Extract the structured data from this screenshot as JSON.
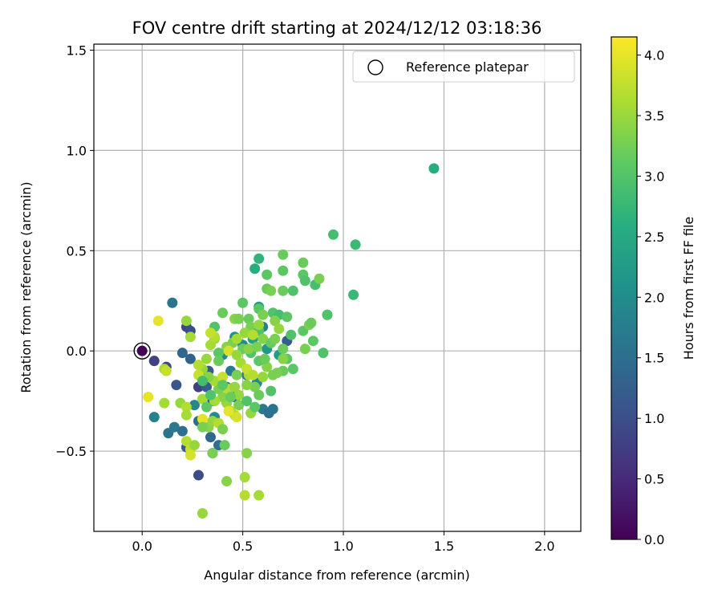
{
  "chart_data": {
    "type": "scatter",
    "title": "FOV centre drift starting at 2024/12/12 03:18:36",
    "xlabel": "Angular distance from reference (arcmin)",
    "ylabel": "Rotation from reference (arcmin)",
    "xlim": [
      -0.24,
      2.18
    ],
    "ylim": [
      -0.9,
      1.53
    ],
    "xticks": [
      0.0,
      0.5,
      1.0,
      1.5,
      2.0
    ],
    "xtick_labels": [
      "0.0",
      "0.5",
      "1.0",
      "1.5",
      "2.0"
    ],
    "yticks": [
      -0.5,
      0.0,
      0.5,
      1.0,
      1.5
    ],
    "ytick_labels": [
      "−0.5",
      "0.0",
      "0.5",
      "1.0",
      "1.5"
    ],
    "grid": true,
    "legend": {
      "placement": "top-right",
      "entries": [
        {
          "label": "Reference platepar",
          "marker": "open-circle"
        }
      ]
    },
    "reference_point": {
      "x": 0.0,
      "y": 0.0
    },
    "colorbar": {
      "label": "Hours from first FF file",
      "colormap": "viridis",
      "range": [
        0.0,
        4.15
      ],
      "ticks": [
        0.0,
        0.5,
        1.0,
        1.5,
        2.0,
        2.5,
        3.0,
        3.5,
        4.0
      ],
      "tick_labels": [
        "0.0",
        "0.5",
        "1.0",
        "1.5",
        "2.0",
        "2.5",
        "3.0",
        "3.5",
        "4.0"
      ]
    },
    "points": [
      {
        "x": 0.0,
        "y": 0.0,
        "c": 0.0
      },
      {
        "x": 0.06,
        "y": -0.05,
        "c": 0.8
      },
      {
        "x": 0.12,
        "y": -0.08,
        "c": 0.9
      },
      {
        "x": 0.22,
        "y": 0.12,
        "c": 0.9
      },
      {
        "x": 0.24,
        "y": 0.1,
        "c": 1.0
      },
      {
        "x": 0.2,
        "y": -0.01,
        "c": 1.4
      },
      {
        "x": 0.24,
        "y": -0.04,
        "c": 1.3
      },
      {
        "x": 0.17,
        "y": -0.17,
        "c": 1.1
      },
      {
        "x": 0.15,
        "y": 0.24,
        "c": 1.6
      },
      {
        "x": 0.06,
        "y": -0.33,
        "c": 1.8
      },
      {
        "x": 0.13,
        "y": -0.41,
        "c": 1.6
      },
      {
        "x": 0.16,
        "y": -0.38,
        "c": 1.7
      },
      {
        "x": 0.2,
        "y": -0.4,
        "c": 1.5
      },
      {
        "x": 0.22,
        "y": -0.48,
        "c": 1.2
      },
      {
        "x": 0.28,
        "y": -0.62,
        "c": 1.0
      },
      {
        "x": 0.28,
        "y": -0.35,
        "c": 1.5
      },
      {
        "x": 0.34,
        "y": -0.43,
        "c": 1.4
      },
      {
        "x": 0.35,
        "y": -0.51,
        "c": 1.6
      },
      {
        "x": 0.38,
        "y": -0.47,
        "c": 1.5
      },
      {
        "x": 0.28,
        "y": -0.18,
        "c": 0.8
      },
      {
        "x": 0.32,
        "y": -0.18,
        "c": 1.2
      },
      {
        "x": 0.35,
        "y": -0.25,
        "c": 1.3
      },
      {
        "x": 0.3,
        "y": -0.12,
        "c": 1.4
      },
      {
        "x": 0.33,
        "y": -0.1,
        "c": 1.2
      },
      {
        "x": 0.42,
        "y": -0.18,
        "c": 1.8
      },
      {
        "x": 0.46,
        "y": -0.23,
        "c": 1.3
      },
      {
        "x": 0.44,
        "y": -0.1,
        "c": 1.7
      },
      {
        "x": 0.52,
        "y": -0.12,
        "c": 1.6
      },
      {
        "x": 0.57,
        "y": -0.16,
        "c": 1.9
      },
      {
        "x": 0.6,
        "y": -0.29,
        "c": 1.7
      },
      {
        "x": 0.63,
        "y": -0.31,
        "c": 1.5
      },
      {
        "x": 0.65,
        "y": -0.29,
        "c": 1.6
      },
      {
        "x": 0.72,
        "y": 0.05,
        "c": 1.2
      },
      {
        "x": 0.6,
        "y": 0.12,
        "c": 1.8
      },
      {
        "x": 0.5,
        "y": 0.03,
        "c": 2.0
      },
      {
        "x": 0.46,
        "y": 0.07,
        "c": 2.1
      },
      {
        "x": 0.4,
        "y": -0.02,
        "c": 1.9
      },
      {
        "x": 0.36,
        "y": -0.33,
        "c": 2.0
      },
      {
        "x": 0.26,
        "y": -0.27,
        "c": 1.9
      },
      {
        "x": 0.58,
        "y": 0.22,
        "c": 2.3
      },
      {
        "x": 0.56,
        "y": 0.41,
        "c": 2.6
      },
      {
        "x": 0.58,
        "y": 0.46,
        "c": 2.7
      },
      {
        "x": 0.55,
        "y": 0.06,
        "c": 2.4
      },
      {
        "x": 0.62,
        "y": 0.01,
        "c": 2.2
      },
      {
        "x": 0.68,
        "y": -0.02,
        "c": 2.3
      },
      {
        "x": 1.45,
        "y": 0.91,
        "c": 2.6
      },
      {
        "x": 1.05,
        "y": 0.28,
        "c": 2.8
      },
      {
        "x": 0.95,
        "y": 0.58,
        "c": 2.9
      },
      {
        "x": 1.06,
        "y": 0.53,
        "c": 2.8
      },
      {
        "x": 0.92,
        "y": 0.18,
        "c": 2.9
      },
      {
        "x": 0.92,
        "y": 0.18,
        "c": 3.0
      },
      {
        "x": 0.9,
        "y": -0.01,
        "c": 3.0
      },
      {
        "x": 0.85,
        "y": 0.05,
        "c": 3.1
      },
      {
        "x": 0.8,
        "y": 0.1,
        "c": 3.1
      },
      {
        "x": 0.8,
        "y": 0.44,
        "c": 3.2
      },
      {
        "x": 0.8,
        "y": 0.38,
        "c": 3.1
      },
      {
        "x": 0.81,
        "y": 0.35,
        "c": 3.0
      },
      {
        "x": 0.86,
        "y": 0.33,
        "c": 2.9
      },
      {
        "x": 0.88,
        "y": 0.36,
        "c": 3.3
      },
      {
        "x": 0.7,
        "y": 0.48,
        "c": 3.2
      },
      {
        "x": 0.7,
        "y": 0.4,
        "c": 3.1
      },
      {
        "x": 0.7,
        "y": 0.3,
        "c": 3.2
      },
      {
        "x": 0.75,
        "y": 0.3,
        "c": 3.0
      },
      {
        "x": 0.62,
        "y": 0.38,
        "c": 3.1
      },
      {
        "x": 0.62,
        "y": 0.31,
        "c": 3.2
      },
      {
        "x": 0.64,
        "y": 0.3,
        "c": 3.3
      },
      {
        "x": 0.65,
        "y": 0.19,
        "c": 3.0
      },
      {
        "x": 0.68,
        "y": 0.18,
        "c": 2.9
      },
      {
        "x": 0.72,
        "y": 0.17,
        "c": 3.1
      },
      {
        "x": 0.83,
        "y": 0.13,
        "c": 3.3
      },
      {
        "x": 0.84,
        "y": 0.14,
        "c": 3.2
      },
      {
        "x": 0.74,
        "y": 0.08,
        "c": 3.0
      },
      {
        "x": 0.81,
        "y": 0.01,
        "c": 3.3
      },
      {
        "x": 0.75,
        "y": -0.09,
        "c": 3.1
      },
      {
        "x": 0.7,
        "y": -0.1,
        "c": 3.2
      },
      {
        "x": 0.67,
        "y": -0.11,
        "c": 3.3
      },
      {
        "x": 0.62,
        "y": -0.08,
        "c": 3.4
      },
      {
        "x": 0.58,
        "y": -0.05,
        "c": 3.1
      },
      {
        "x": 0.54,
        "y": -0.01,
        "c": 3.0
      },
      {
        "x": 0.5,
        "y": 0.01,
        "c": 3.2
      },
      {
        "x": 0.45,
        "y": 0.04,
        "c": 3.3
      },
      {
        "x": 0.42,
        "y": 0.02,
        "c": 3.4
      },
      {
        "x": 0.38,
        "y": -0.01,
        "c": 3.1
      },
      {
        "x": 0.36,
        "y": 0.06,
        "c": 3.5
      },
      {
        "x": 0.36,
        "y": 0.12,
        "c": 3.0
      },
      {
        "x": 0.4,
        "y": 0.19,
        "c": 3.2
      },
      {
        "x": 0.46,
        "y": 0.16,
        "c": 3.4
      },
      {
        "x": 0.5,
        "y": 0.24,
        "c": 3.1
      },
      {
        "x": 0.53,
        "y": 0.16,
        "c": 3.2
      },
      {
        "x": 0.54,
        "y": 0.12,
        "c": 3.3
      },
      {
        "x": 0.58,
        "y": 0.1,
        "c": 3.0
      },
      {
        "x": 0.6,
        "y": 0.06,
        "c": 3.4
      },
      {
        "x": 0.64,
        "y": 0.04,
        "c": 3.2
      },
      {
        "x": 0.66,
        "y": 0.06,
        "c": 3.3
      },
      {
        "x": 0.7,
        "y": 0.01,
        "c": 3.2
      },
      {
        "x": 0.72,
        "y": -0.04,
        "c": 3.1
      },
      {
        "x": 0.56,
        "y": -0.18,
        "c": 3.3
      },
      {
        "x": 0.58,
        "y": -0.22,
        "c": 3.2
      },
      {
        "x": 0.6,
        "y": -0.13,
        "c": 3.5
      },
      {
        "x": 0.53,
        "y": -0.12,
        "c": 3.6
      },
      {
        "x": 0.52,
        "y": -0.17,
        "c": 3.4
      },
      {
        "x": 0.48,
        "y": -0.22,
        "c": 3.5
      },
      {
        "x": 0.48,
        "y": -0.27,
        "c": 3.3
      },
      {
        "x": 0.54,
        "y": -0.31,
        "c": 3.5
      },
      {
        "x": 0.46,
        "y": -0.32,
        "c": 3.7
      },
      {
        "x": 0.44,
        "y": -0.3,
        "c": 3.6
      },
      {
        "x": 0.42,
        "y": -0.26,
        "c": 3.5
      },
      {
        "x": 0.4,
        "y": -0.23,
        "c": 3.4
      },
      {
        "x": 0.38,
        "y": -0.19,
        "c": 3.3
      },
      {
        "x": 0.36,
        "y": -0.15,
        "c": 3.6
      },
      {
        "x": 0.33,
        "y": -0.13,
        "c": 3.4
      },
      {
        "x": 0.3,
        "y": -0.09,
        "c": 3.5
      },
      {
        "x": 0.28,
        "y": -0.12,
        "c": 3.8
      },
      {
        "x": 0.28,
        "y": -0.07,
        "c": 3.7
      },
      {
        "x": 0.32,
        "y": -0.04,
        "c": 3.5
      },
      {
        "x": 0.34,
        "y": 0.03,
        "c": 3.6
      },
      {
        "x": 0.36,
        "y": 0.07,
        "c": 3.7
      },
      {
        "x": 0.24,
        "y": 0.07,
        "c": 3.6
      },
      {
        "x": 0.22,
        "y": 0.15,
        "c": 3.5
      },
      {
        "x": 0.08,
        "y": 0.15,
        "c": 4.0
      },
      {
        "x": 0.11,
        "y": -0.09,
        "c": 3.6
      },
      {
        "x": 0.12,
        "y": -0.1,
        "c": 3.8
      },
      {
        "x": 0.03,
        "y": -0.23,
        "c": 4.0
      },
      {
        "x": 0.11,
        "y": -0.26,
        "c": 3.6
      },
      {
        "x": 0.19,
        "y": -0.26,
        "c": 3.5
      },
      {
        "x": 0.22,
        "y": -0.28,
        "c": 3.7
      },
      {
        "x": 0.22,
        "y": -0.32,
        "c": 3.6
      },
      {
        "x": 0.22,
        "y": -0.45,
        "c": 3.7
      },
      {
        "x": 0.24,
        "y": -0.49,
        "c": 3.8
      },
      {
        "x": 0.24,
        "y": -0.52,
        "c": 3.9
      },
      {
        "x": 0.26,
        "y": -0.47,
        "c": 3.5
      },
      {
        "x": 0.3,
        "y": -0.34,
        "c": 4.0
      },
      {
        "x": 0.3,
        "y": -0.24,
        "c": 3.6
      },
      {
        "x": 0.33,
        "y": -0.38,
        "c": 3.4
      },
      {
        "x": 0.35,
        "y": -0.35,
        "c": 3.5
      },
      {
        "x": 0.38,
        "y": -0.36,
        "c": 3.7
      },
      {
        "x": 0.4,
        "y": -0.39,
        "c": 3.3
      },
      {
        "x": 0.41,
        "y": -0.47,
        "c": 3.2
      },
      {
        "x": 0.42,
        "y": -0.65,
        "c": 3.4
      },
      {
        "x": 0.3,
        "y": -0.81,
        "c": 3.5
      },
      {
        "x": 0.51,
        "y": -0.63,
        "c": 3.6
      },
      {
        "x": 0.51,
        "y": -0.72,
        "c": 3.7
      },
      {
        "x": 0.58,
        "y": -0.72,
        "c": 3.6
      },
      {
        "x": 0.52,
        "y": -0.51,
        "c": 3.4
      },
      {
        "x": 0.35,
        "y": -0.51,
        "c": 3.3
      },
      {
        "x": 0.43,
        "y": -0.3,
        "c": 4.0
      },
      {
        "x": 0.47,
        "y": -0.33,
        "c": 3.9
      },
      {
        "x": 0.36,
        "y": -0.25,
        "c": 3.6
      },
      {
        "x": 0.4,
        "y": -0.13,
        "c": 3.8
      },
      {
        "x": 0.43,
        "y": -0.19,
        "c": 3.7
      },
      {
        "x": 0.46,
        "y": -0.18,
        "c": 3.5
      },
      {
        "x": 0.49,
        "y": -0.06,
        "c": 3.6
      },
      {
        "x": 0.52,
        "y": -0.09,
        "c": 3.8
      },
      {
        "x": 0.55,
        "y": -0.12,
        "c": 3.7
      },
      {
        "x": 0.43,
        "y": 0.0,
        "c": 3.9
      },
      {
        "x": 0.47,
        "y": 0.06,
        "c": 3.6
      },
      {
        "x": 0.51,
        "y": 0.09,
        "c": 3.5
      },
      {
        "x": 0.55,
        "y": 0.08,
        "c": 3.7
      },
      {
        "x": 0.53,
        "y": 0.01,
        "c": 3.4
      },
      {
        "x": 0.47,
        "y": -0.02,
        "c": 3.5
      },
      {
        "x": 0.48,
        "y": 0.16,
        "c": 3.3
      },
      {
        "x": 0.58,
        "y": 0.13,
        "c": 3.5
      },
      {
        "x": 0.66,
        "y": 0.15,
        "c": 3.4
      },
      {
        "x": 0.68,
        "y": 0.11,
        "c": 3.5
      },
      {
        "x": 0.61,
        "y": -0.04,
        "c": 3.2
      },
      {
        "x": 0.57,
        "y": 0.02,
        "c": 3.3
      },
      {
        "x": 0.64,
        "y": -0.2,
        "c": 3.0
      },
      {
        "x": 0.7,
        "y": -0.04,
        "c": 3.4
      },
      {
        "x": 0.65,
        "y": -0.12,
        "c": 3.3
      },
      {
        "x": 0.44,
        "y": -0.23,
        "c": 3.2
      },
      {
        "x": 0.4,
        "y": -0.17,
        "c": 3.1
      },
      {
        "x": 0.34,
        "y": -0.22,
        "c": 3.0
      },
      {
        "x": 0.38,
        "y": -0.05,
        "c": 3.2
      },
      {
        "x": 0.3,
        "y": -0.15,
        "c": 2.9
      },
      {
        "x": 0.32,
        "y": -0.28,
        "c": 3.1
      },
      {
        "x": 0.3,
        "y": -0.38,
        "c": 3.3
      },
      {
        "x": 0.34,
        "y": 0.09,
        "c": 3.8
      },
      {
        "x": 0.58,
        "y": 0.21,
        "c": 3.1
      },
      {
        "x": 0.6,
        "y": 0.18,
        "c": 3.3
      },
      {
        "x": 0.52,
        "y": -0.25,
        "c": 3.0
      },
      {
        "x": 0.56,
        "y": -0.28,
        "c": 3.1
      },
      {
        "x": 0.47,
        "y": -0.12,
        "c": 3.3
      }
    ]
  }
}
